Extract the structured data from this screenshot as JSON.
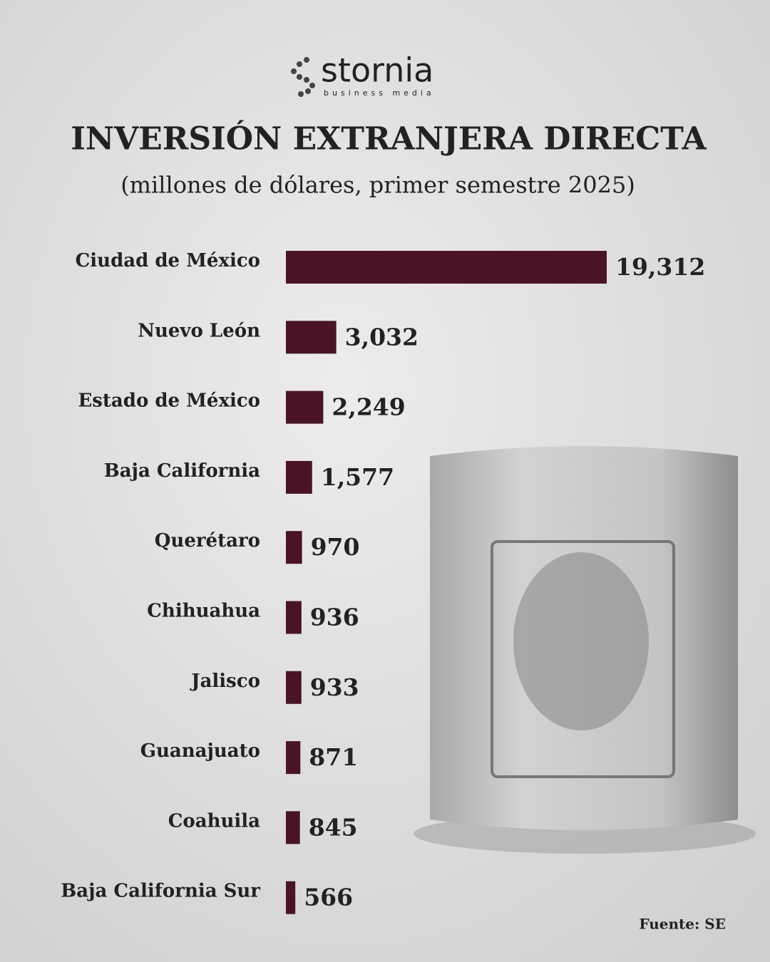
{
  "brand": {
    "name": "stornia",
    "tagline": "business media"
  },
  "chart_data": {
    "type": "hbar",
    "title": "INVERSIÓN EXTRANJERA DIRECTA",
    "subtitle": "(millones de dólares, primer semestre 2025)",
    "categories": [
      "Ciudad de México",
      "Nuevo León",
      "Estado de México",
      "Baja California",
      "Querétaro",
      "Chihuahua",
      "Jalisco",
      "Guanajuato",
      "Coahuila",
      "Baja California Sur"
    ],
    "values": [
      19312,
      3032,
      2249,
      1577,
      970,
      936,
      933,
      871,
      845,
      566
    ],
    "value_labels": [
      "19,312",
      "3,032",
      "2,249",
      "1,577",
      "970",
      "936",
      "933",
      "871",
      "845",
      "566"
    ],
    "color": "#4a1426",
    "source": "Fuente: SE"
  }
}
